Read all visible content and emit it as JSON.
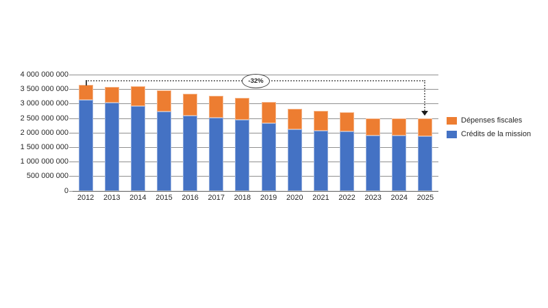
{
  "chart_data": {
    "type": "bar",
    "stacked": true,
    "title": "",
    "categories": [
      "2012",
      "2013",
      "2014",
      "2015",
      "2016",
      "2017",
      "2018",
      "2019",
      "2020",
      "2021",
      "2022",
      "2023",
      "2024",
      "2025"
    ],
    "series": [
      {
        "name": "Crédits de la mission",
        "color": "#4472C4",
        "values": [
          3130000000,
          3030000000,
          2920000000,
          2720000000,
          2580000000,
          2520000000,
          2440000000,
          2320000000,
          2120000000,
          2060000000,
          2050000000,
          1900000000,
          1910000000,
          1880000000
        ]
      },
      {
        "name": "Dépenses fiscales",
        "color": "#ED7D31",
        "values": [
          510000000,
          550000000,
          690000000,
          740000000,
          750000000,
          760000000,
          760000000,
          740000000,
          710000000,
          690000000,
          650000000,
          600000000,
          590000000,
          600000000
        ]
      }
    ],
    "ylim": [
      0,
      4000000000
    ],
    "ytick_step": 500000000,
    "ytick_labels": [
      "0",
      "500 000 000",
      "1 000 000 000",
      "1 500 000 000",
      "2 000 000 000",
      "2 500 000 000",
      "3 000 000 000",
      "3 500 000 000",
      "4 000 000 000"
    ],
    "grid": true,
    "legend_position": "right",
    "annotation": {
      "label": "-32%",
      "from_category": "2012",
      "to_category": "2025"
    }
  },
  "legend": {
    "items": [
      {
        "label": "Dépenses fiscales",
        "color": "#ED7D31"
      },
      {
        "label": "Crédits de la mission",
        "color": "#4472C4"
      }
    ]
  }
}
